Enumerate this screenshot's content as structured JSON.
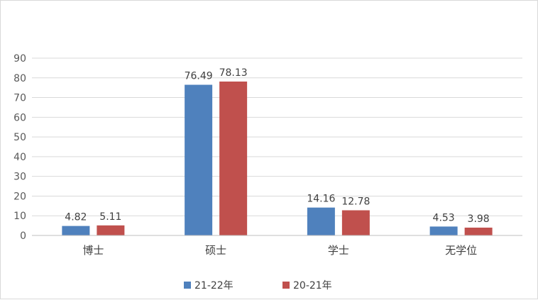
{
  "chart_data": {
    "type": "bar",
    "title": "",
    "xlabel": "",
    "ylabel": "",
    "categories": [
      "博士",
      "硕士",
      "学士",
      "无学位"
    ],
    "series": [
      {
        "name": "21-22年",
        "values": [
          4.82,
          76.49,
          14.16,
          4.53
        ],
        "color": "#4f81bd"
      },
      {
        "name": "20-21年",
        "values": [
          5.11,
          78.13,
          12.78,
          3.98
        ],
        "color": "#c0504d"
      }
    ],
    "y_ticks": [
      "0",
      "10",
      "20",
      "30",
      "40",
      "50",
      "60",
      "70",
      "80",
      "90"
    ],
    "ylim": [
      0,
      90
    ],
    "grid": true,
    "legend_position": "bottom"
  }
}
